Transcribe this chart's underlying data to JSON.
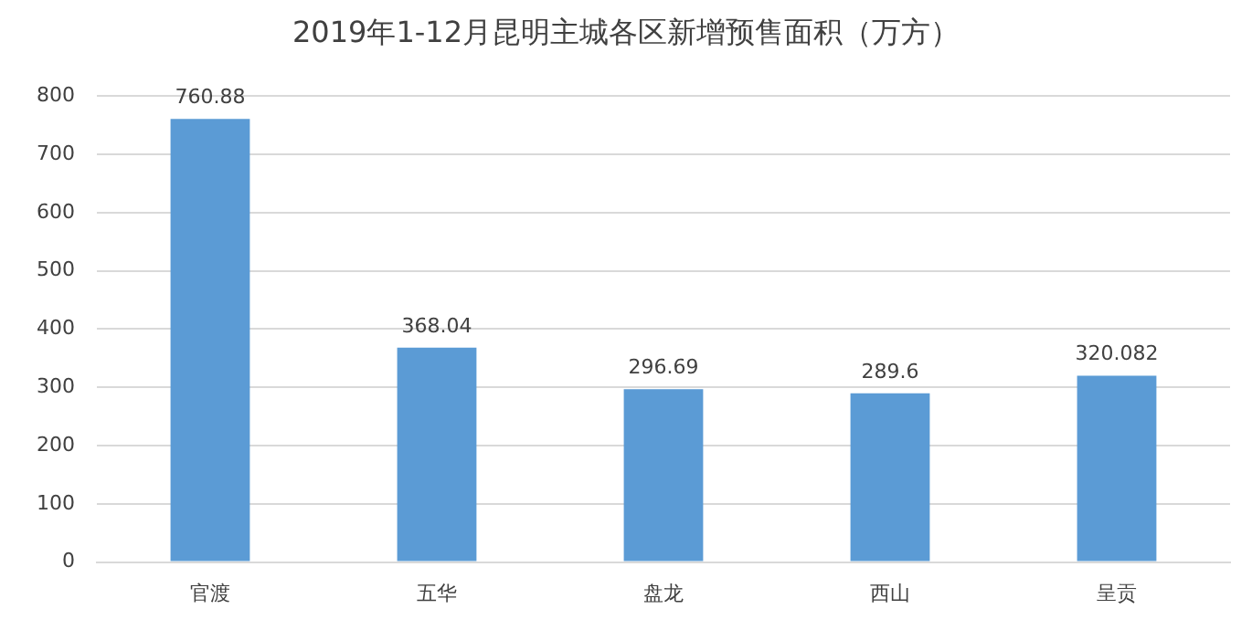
{
  "chart_data": {
    "type": "bar",
    "title": "2019年1-12月昆明主城各区新增预售面积（万方）",
    "categories": [
      "官渡",
      "五华",
      "盘龙",
      "西山",
      "呈贡"
    ],
    "values": [
      760.88,
      368.04,
      296.69,
      289.6,
      320.082
    ],
    "color": "#5b9bd5",
    "ylim": [
      0,
      800
    ],
    "yticks": [
      0,
      100,
      200,
      300,
      400,
      500,
      600,
      700,
      800
    ],
    "grid": "y",
    "data_labels": true,
    "legend": false
  }
}
